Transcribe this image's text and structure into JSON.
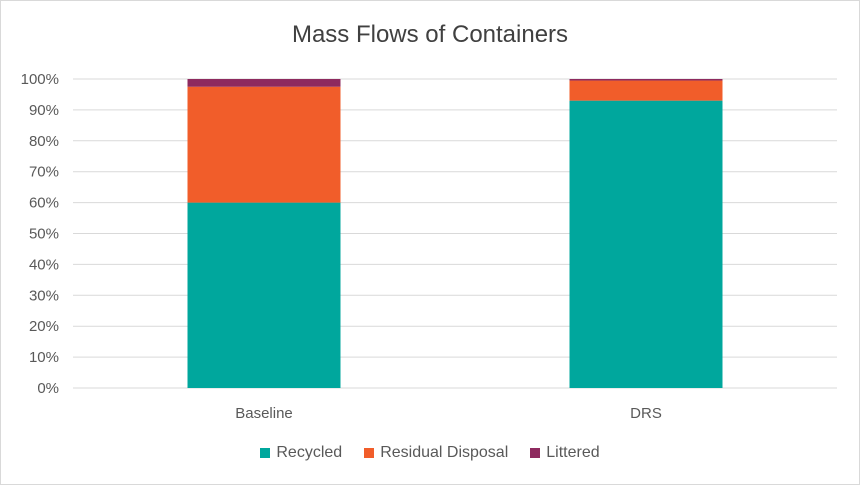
{
  "chart_data": {
    "type": "bar",
    "stacked": true,
    "title": "Mass Flows of Containers",
    "categories": [
      "Baseline",
      "DRS"
    ],
    "series": [
      {
        "name": "Recycled",
        "color": "#00A79D",
        "values": [
          60,
          93
        ]
      },
      {
        "name": "Residual Disposal",
        "color": "#F15D2A",
        "values": [
          37.5,
          6.5
        ]
      },
      {
        "name": "Littered",
        "color": "#8E2A5F",
        "values": [
          2.5,
          0.5
        ]
      }
    ],
    "ylim": [
      0,
      100
    ],
    "yticks": [
      "0%",
      "10%",
      "20%",
      "30%",
      "40%",
      "50%",
      "60%",
      "70%",
      "80%",
      "90%",
      "100%"
    ],
    "grid": true,
    "legend_position": "bottom"
  }
}
